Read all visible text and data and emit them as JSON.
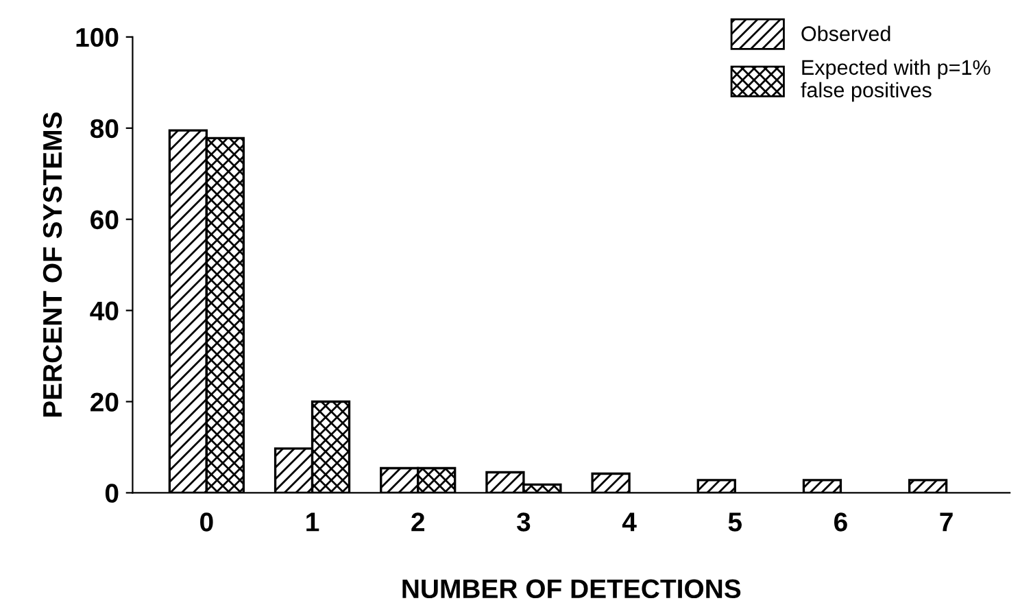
{
  "chart_data": {
    "type": "bar",
    "xlabel": "NUMBER OF DETECTIONS",
    "ylabel": "PERCENT OF SYSTEMS",
    "categories": [
      "0",
      "1",
      "2",
      "3",
      "4",
      "5",
      "6",
      "7"
    ],
    "series": [
      {
        "name": "Observed",
        "color": "#000000",
        "values": [
          79.5,
          9.7,
          5.4,
          4.5,
          4.2,
          2.8,
          2.8,
          2.8
        ]
      },
      {
        "name": "Expected with p=1%\nfalse positives",
        "color": "#000000",
        "values": [
          77.8,
          20,
          5.4,
          1.8,
          null,
          null,
          null,
          null
        ]
      }
    ],
    "ylim": [
      0,
      100
    ],
    "yticks": [
      0,
      20,
      40,
      60,
      80,
      100
    ],
    "grid": false,
    "legend": "top right"
  }
}
